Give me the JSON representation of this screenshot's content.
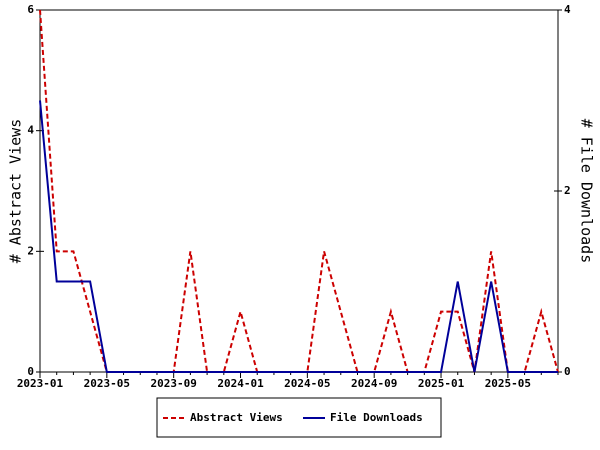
{
  "chart_data": {
    "type": "line",
    "categories": [
      "2023-01",
      null,
      null,
      null,
      "2023-05",
      null,
      null,
      null,
      "2023-09",
      null,
      null,
      null,
      "2024-01",
      null,
      null,
      null,
      "2024-05",
      null,
      null,
      null,
      "2024-09",
      null,
      null,
      null,
      "2025-01",
      null,
      null,
      null,
      "2025-05",
      null,
      null,
      null
    ],
    "series": [
      {
        "name": "Abstract Views",
        "color": "#cc0000",
        "dashed": true,
        "axis": "y",
        "values": [
          6,
          2,
          2,
          1,
          0,
          0,
          0,
          0,
          0,
          2,
          0,
          0,
          1,
          0,
          0,
          0,
          0,
          2,
          1,
          0,
          0,
          1,
          0,
          0,
          1,
          1,
          0,
          2,
          0,
          0,
          1,
          0
        ]
      },
      {
        "name": "File Downloads",
        "color": "#000099",
        "dashed": false,
        "axis": "y2",
        "values": [
          3,
          1,
          1,
          1,
          0,
          0,
          0,
          0,
          0,
          0,
          0,
          0,
          0,
          0,
          0,
          0,
          0,
          0,
          0,
          0,
          0,
          0,
          0,
          0,
          0,
          1,
          0,
          1,
          0,
          0,
          0,
          0
        ]
      }
    ],
    "ylabel": "# Abstract Views",
    "y2label": "# File Downloads",
    "ylim": [
      0,
      6
    ],
    "yticks": [
      0,
      2,
      4,
      6
    ],
    "y2lim": [
      0,
      4
    ],
    "y2ticks": [
      0,
      2,
      4
    ],
    "legend": "bottom"
  }
}
